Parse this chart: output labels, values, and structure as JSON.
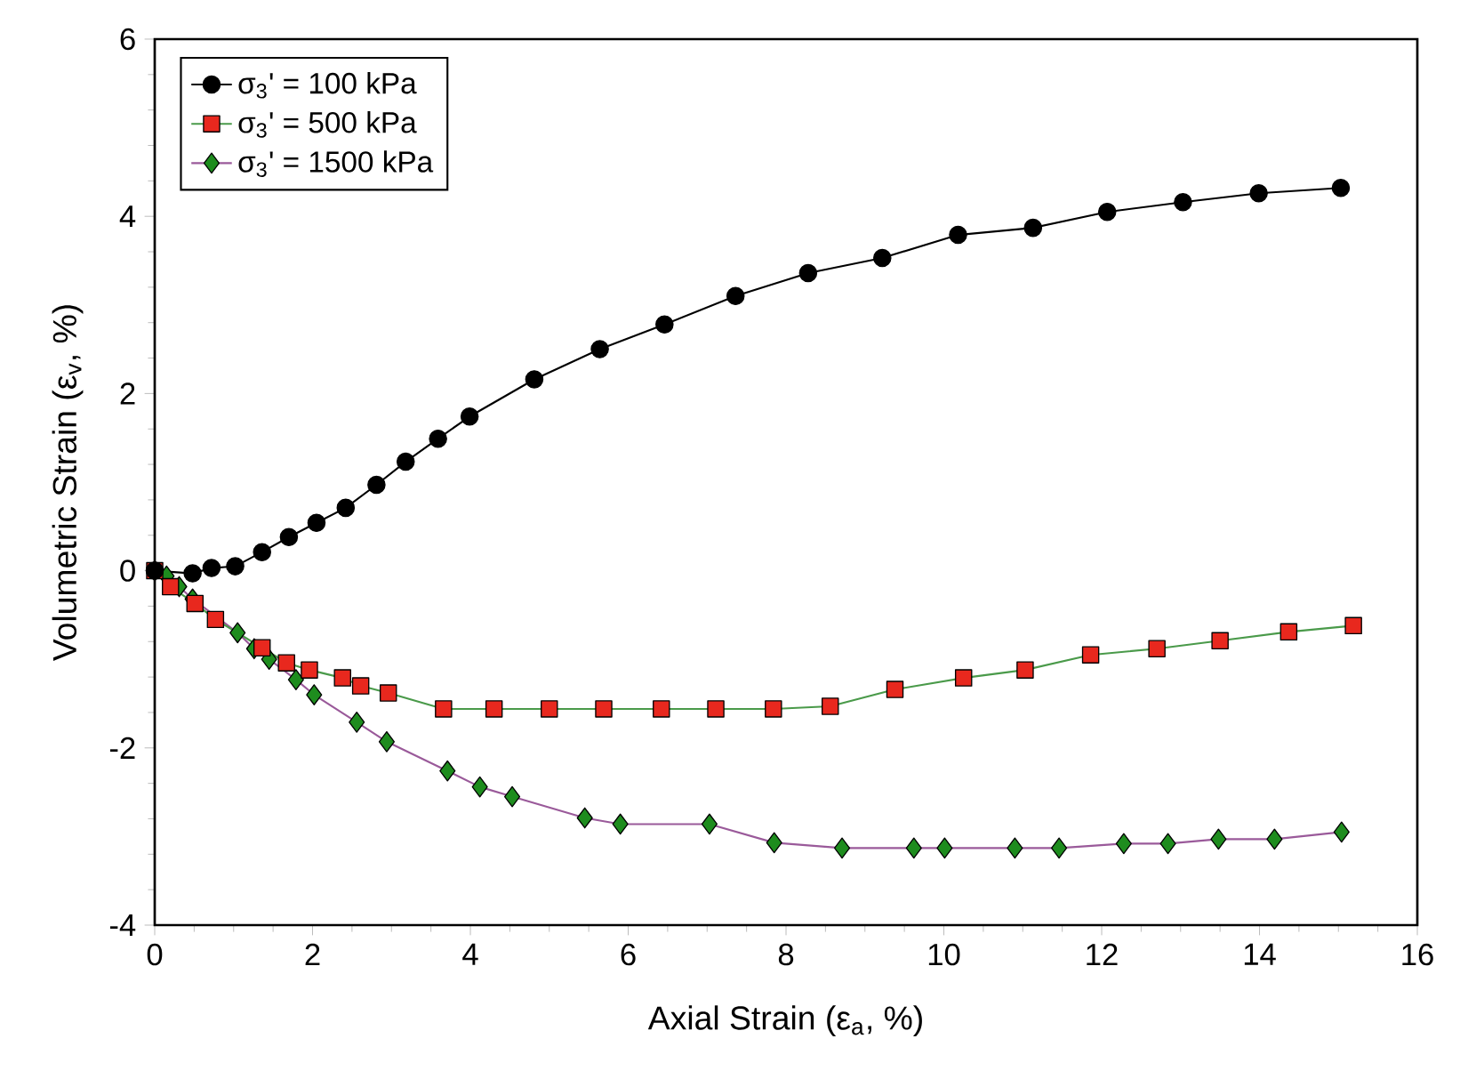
{
  "chart_data": {
    "type": "line",
    "xlabel": "Axial Strain (ε$_{a}$, %)",
    "ylabel": "Volumetric Strain (ε$_{v}$, %)",
    "xlim": [
      0,
      16
    ],
    "xticks": [
      0,
      2,
      4,
      6,
      8,
      10,
      12,
      14,
      16
    ],
    "ylim": [
      -4,
      6
    ],
    "yticks": [
      -4,
      -2,
      0,
      2,
      4,
      6
    ],
    "grid": false,
    "legend": "top left",
    "line_style": "solid",
    "series": [
      {
        "name": "σ$_{3}$' = 100 kPa",
        "color": "#000000",
        "marker": "circle",
        "x": [
          0,
          0.48,
          0.72,
          1.02,
          1.36,
          1.7,
          2.05,
          2.42,
          2.81,
          3.18,
          3.59,
          3.99,
          4.81,
          5.64,
          6.46,
          7.36,
          8.28,
          9.22,
          10.18,
          11.13,
          12.07,
          13.03,
          13.99,
          15.03
        ],
        "values": [
          0,
          -0.03,
          0.03,
          0.05,
          0.21,
          0.38,
          0.54,
          0.71,
          0.97,
          1.23,
          1.49,
          1.74,
          2.16,
          2.5,
          2.78,
          3.1,
          3.36,
          3.53,
          3.79,
          3.87,
          4.05,
          4.16,
          4.26,
          4.32
        ]
      },
      {
        "name": "σ$_{3}$' = 500 kPa",
        "color": "#e8281e",
        "marker": "square",
        "x": [
          0,
          0.2,
          0.51,
          0.77,
          1.36,
          1.67,
          1.96,
          2.38,
          2.61,
          2.96,
          3.66,
          4.3,
          5.0,
          5.69,
          6.42,
          7.11,
          7.84,
          8.56,
          9.38,
          10.25,
          11.03,
          11.86,
          12.7,
          13.5,
          14.37,
          15.19
        ],
        "values": [
          0,
          -0.18,
          -0.37,
          -0.55,
          -0.87,
          -1.04,
          -1.12,
          -1.21,
          -1.3,
          -1.38,
          -1.56,
          -1.56,
          -1.56,
          -1.56,
          -1.56,
          -1.56,
          -1.56,
          -1.53,
          -1.34,
          -1.21,
          -1.12,
          -0.95,
          -0.88,
          -0.79,
          -0.69,
          -0.62
        ]
      },
      {
        "name": "σ$_{3}$' = 1500 kPa",
        "color": "#1e8c1e",
        "marker": "diamond",
        "x": [
          0,
          0.15,
          0.31,
          0.48,
          1.05,
          1.26,
          1.45,
          1.79,
          2.02,
          2.56,
          2.94,
          3.71,
          4.12,
          4.53,
          5.45,
          5.9,
          7.03,
          7.85,
          8.71,
          9.62,
          10.01,
          10.9,
          11.46,
          12.28,
          12.84,
          13.48,
          14.19,
          15.04
        ],
        "values": [
          0,
          -0.06,
          -0.18,
          -0.32,
          -0.7,
          -0.88,
          -1.0,
          -1.23,
          -1.4,
          -1.71,
          -1.93,
          -2.26,
          -2.44,
          -2.55,
          -2.79,
          -2.86,
          -2.86,
          -3.07,
          -3.13,
          -3.13,
          -3.13,
          -3.13,
          -3.13,
          -3.08,
          -3.08,
          -3.03,
          -3.03,
          -2.95
        ]
      }
    ]
  }
}
